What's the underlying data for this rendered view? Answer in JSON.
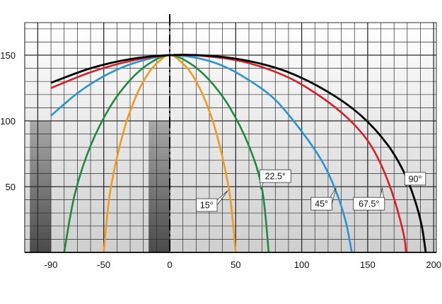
{
  "chart_data": {
    "type": "line",
    "title": "",
    "xlabel": "",
    "ylabel": "",
    "xlim": [
      -110,
      210
    ],
    "ylim": [
      0,
      160
    ],
    "x_ticks": [
      {
        "value": -90,
        "label": "-90"
      },
      {
        "value": -50,
        "label": "-50"
      },
      {
        "value": 0,
        "label": "0"
      },
      {
        "value": 50,
        "label": "50"
      },
      {
        "value": 100,
        "label": "100"
      },
      {
        "value": 150,
        "label": "150"
      },
      {
        "value": 200,
        "label": "200"
      }
    ],
    "y_ticks": [
      {
        "value": 50,
        "label": "50"
      },
      {
        "value": 100,
        "label": "100"
      },
      {
        "value": 150,
        "label": "150"
      }
    ],
    "grid": true,
    "center_line_x": 0,
    "shaded_regions": [
      {
        "x_range": [
          -106,
          -90
        ],
        "y_range": [
          0,
          100
        ]
      },
      {
        "x_range": [
          -16,
          0
        ],
        "y_range": [
          0,
          100
        ]
      }
    ],
    "series": [
      {
        "name": "15°",
        "color": "#f39a1e",
        "points": [
          [
            -50,
            0
          ],
          [
            -45,
            47
          ],
          [
            -35,
            92
          ],
          [
            -25,
            120
          ],
          [
            -15,
            138
          ],
          [
            -5,
            148
          ],
          [
            0,
            150
          ],
          [
            5,
            148
          ],
          [
            15,
            138
          ],
          [
            25,
            120
          ],
          [
            35,
            92
          ],
          [
            45,
            47
          ],
          [
            50,
            0
          ]
        ]
      },
      {
        "name": "22.5°",
        "color": "#1e8a3e",
        "points": [
          [
            -80,
            0
          ],
          [
            -72,
            44
          ],
          [
            -60,
            81
          ],
          [
            -45,
            111
          ],
          [
            -30,
            131
          ],
          [
            -15,
            144
          ],
          [
            0,
            150
          ],
          [
            15,
            144
          ],
          [
            30,
            131
          ],
          [
            45,
            111
          ],
          [
            60,
            81
          ],
          [
            70,
            48
          ],
          [
            75,
            0
          ]
        ]
      },
      {
        "name": "45°",
        "color": "#2a93d2",
        "points": [
          [
            -90,
            104
          ],
          [
            -70,
            121
          ],
          [
            -50,
            134
          ],
          [
            -30,
            143
          ],
          [
            -10,
            148.6
          ],
          [
            0,
            150
          ],
          [
            20,
            148
          ],
          [
            40,
            142
          ],
          [
            60,
            131
          ],
          [
            80,
            116
          ],
          [
            100,
            92
          ],
          [
            115,
            70
          ],
          [
            125,
            49
          ],
          [
            133,
            25
          ],
          [
            138,
            0
          ]
        ]
      },
      {
        "name": "67.5°",
        "color": "#d71f27",
        "points": [
          [
            -90,
            125
          ],
          [
            -60,
            137
          ],
          [
            -30,
            145.5
          ],
          [
            0,
            150
          ],
          [
            30,
            149
          ],
          [
            60,
            144
          ],
          [
            90,
            133
          ],
          [
            115,
            118
          ],
          [
            135,
            102
          ],
          [
            150,
            85
          ],
          [
            160,
            67
          ],
          [
            168,
            47
          ],
          [
            174,
            27
          ],
          [
            178,
            10
          ],
          [
            179,
            0
          ]
        ]
      },
      {
        "name": "90°",
        "color": "#000000",
        "points": [
          [
            -90,
            129
          ],
          [
            -60,
            140
          ],
          [
            -30,
            147
          ],
          [
            0,
            150
          ],
          [
            30,
            149.5
          ],
          [
            60,
            145.5
          ],
          [
            90,
            137
          ],
          [
            120,
            122
          ],
          [
            145,
            104
          ],
          [
            165,
            82
          ],
          [
            178,
            60
          ],
          [
            186,
            39
          ],
          [
            191,
            20
          ],
          [
            194,
            0
          ]
        ]
      }
    ],
    "annotations": [
      {
        "text": "15°",
        "series": "15°",
        "anchor": [
          44,
          47
        ],
        "box": [
          28,
          36
        ]
      },
      {
        "text": "22.5°",
        "series": "22.5°",
        "anchor": [
          69,
          48
        ],
        "box": [
          80,
          58
        ]
      },
      {
        "text": "45°",
        "series": "45°",
        "anchor": [
          126,
          49
        ],
        "box": [
          115,
          37
        ]
      },
      {
        "text": "67.5°",
        "series": "67.5°",
        "anchor": [
          161,
          49
        ],
        "box": [
          151,
          37
        ]
      },
      {
        "text": "90°",
        "series": "90°",
        "anchor": [
          179,
          50
        ],
        "box": [
          186,
          56
        ]
      }
    ]
  }
}
